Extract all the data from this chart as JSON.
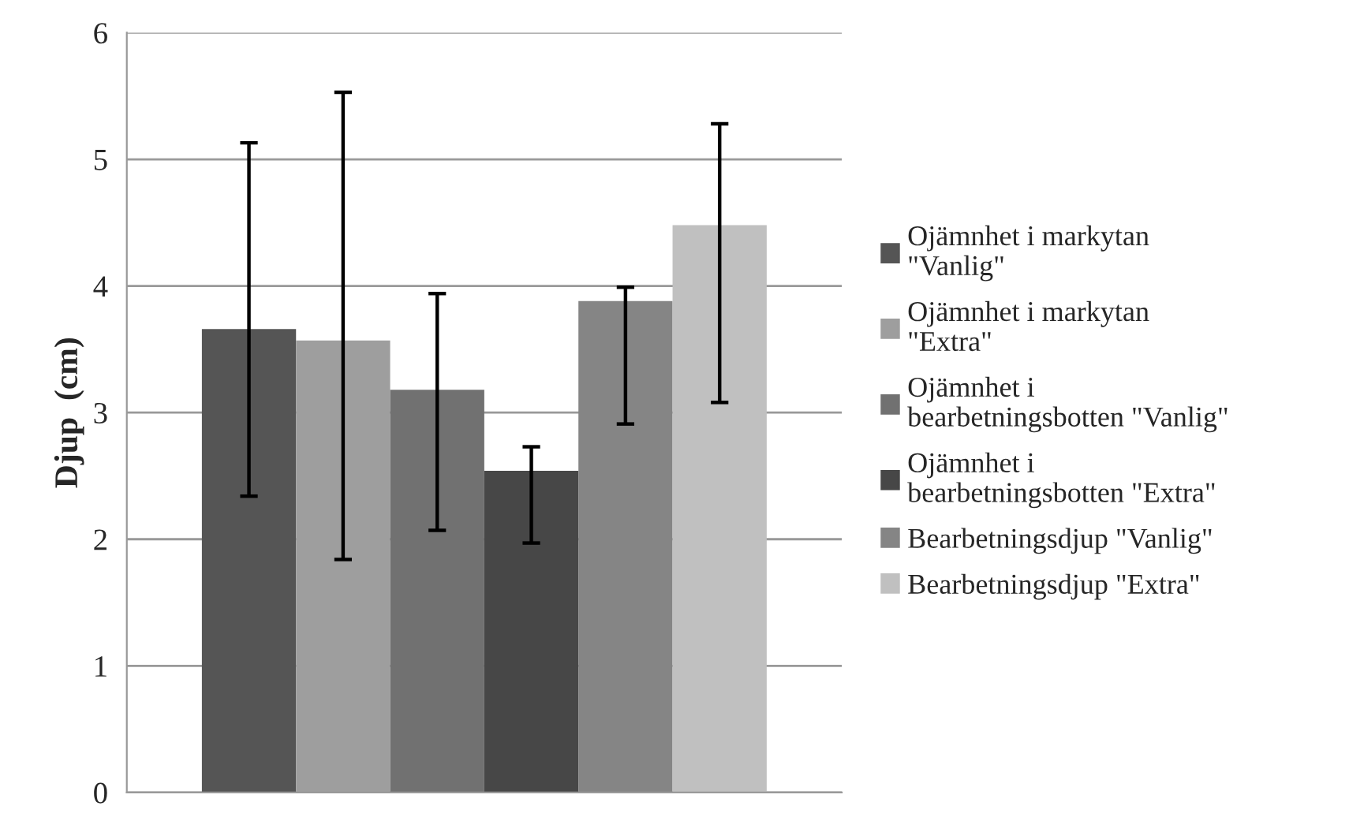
{
  "chart_data": {
    "type": "bar",
    "ylabel": "Djup  (cm)",
    "categories": [
      null
    ],
    "series": [
      {
        "name": "Ojämnhet i markytan\n\"Vanlig\"",
        "color": "#555555",
        "values": [
          3.66
        ],
        "errors": [
          [
            2.34,
            5.13
          ]
        ]
      },
      {
        "name": "Ojämnhet i markytan\n\"Extra\"",
        "color": "#9e9e9e",
        "values": [
          3.57
        ],
        "errors": [
          [
            1.84,
            5.53
          ]
        ]
      },
      {
        "name": "Ojämnhet i\nbearbetningsbotten \"Vanlig\"",
        "color": "#717171",
        "values": [
          3.18
        ],
        "errors": [
          [
            2.07,
            3.94
          ]
        ]
      },
      {
        "name": "Ojämnhet i\nbearbetningsbotten \"Extra\"",
        "color": "#474747",
        "values": [
          2.54
        ],
        "errors": [
          [
            1.97,
            2.73
          ]
        ]
      },
      {
        "name": "Bearbetningsdjup \"Vanlig\"",
        "color": "#858585",
        "values": [
          3.88
        ],
        "errors": [
          [
            2.91,
            3.99
          ]
        ]
      },
      {
        "name": "Bearbetningsdjup \"Extra\"",
        "color": "#c0c0c0",
        "values": [
          4.48
        ],
        "errors": [
          [
            3.08,
            5.28
          ]
        ]
      }
    ],
    "ylim": [
      0,
      6
    ],
    "yticks": [
      0,
      1,
      2,
      3,
      4,
      5,
      6
    ],
    "grid": "y",
    "legend": "right"
  }
}
